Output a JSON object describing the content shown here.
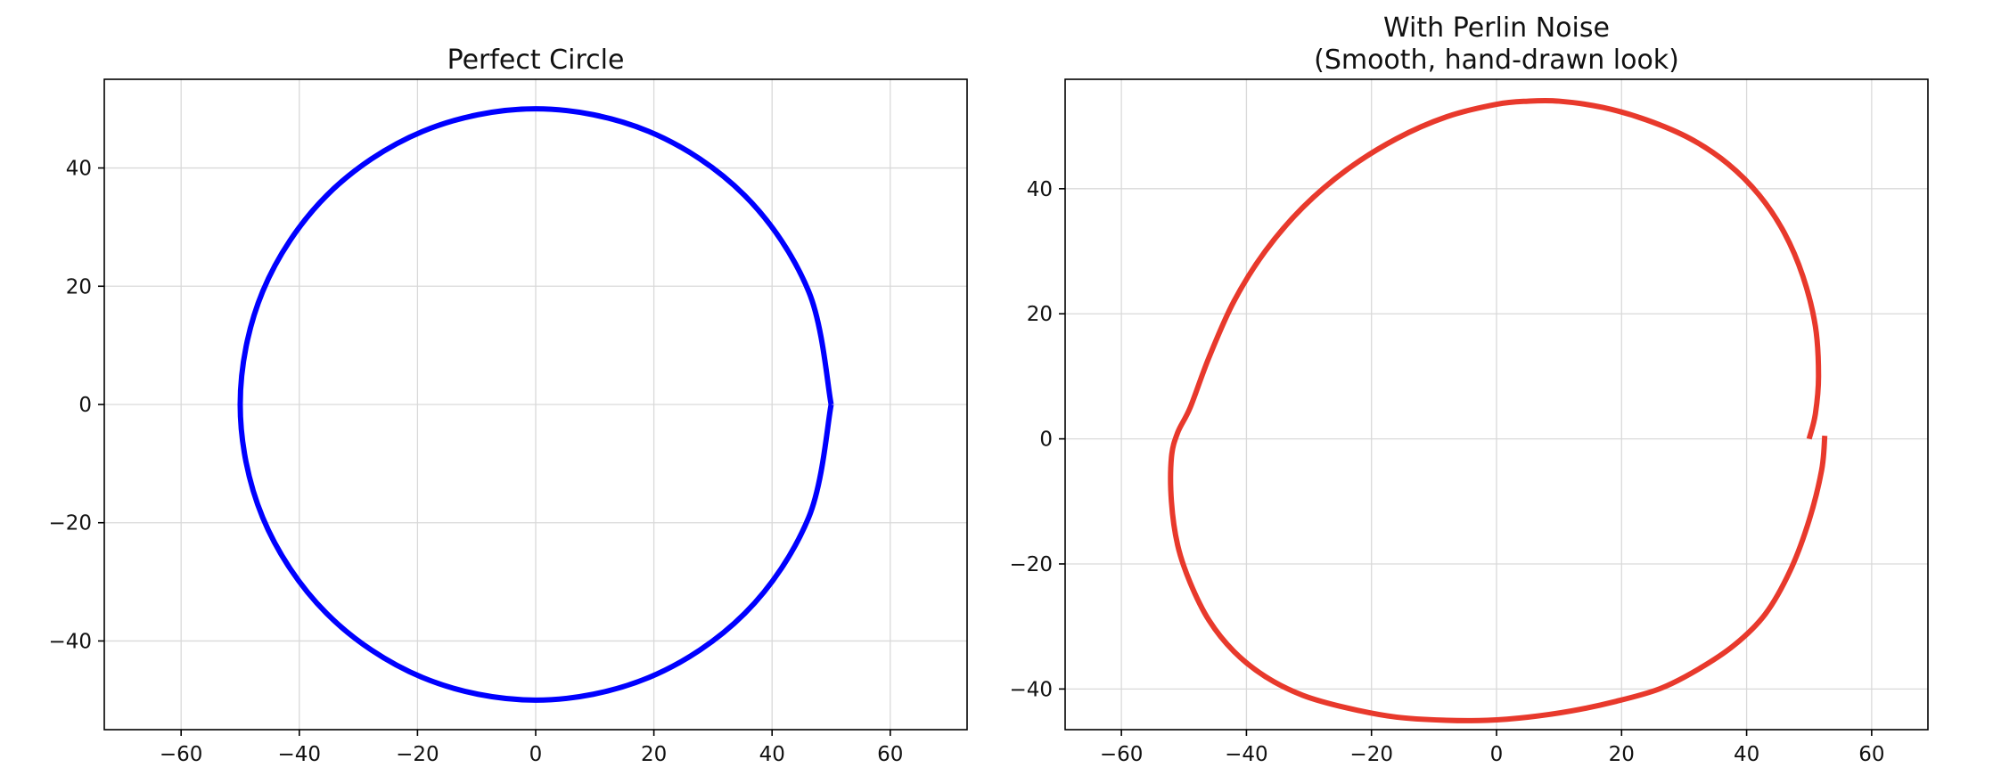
{
  "chart_data": [
    {
      "type": "line",
      "title": "Perfect Circle",
      "xlabel": "",
      "ylabel": "",
      "xlim": [
        -73,
        73
      ],
      "ylim": [
        -55,
        55
      ],
      "x_ticks": [
        -60,
        -40,
        -20,
        0,
        20,
        40,
        60
      ],
      "y_ticks": [
        -40,
        -20,
        0,
        20,
        40
      ],
      "x_tick_labels": [
        "−60",
        "−40",
        "−20",
        "0",
        "20",
        "40",
        "60"
      ],
      "y_tick_labels": [
        "−40",
        "−20",
        "0",
        "20",
        "40"
      ],
      "grid": true,
      "color": "#0000ff",
      "series": [
        {
          "x": [
            50,
            46.19,
            35.36,
            19.13,
            0,
            -19.13,
            -35.36,
            -46.19,
            -50,
            -46.19,
            -35.36,
            -19.13,
            0,
            19.13,
            35.36,
            46.19,
            50
          ],
          "y": [
            0,
            19.13,
            35.36,
            46.19,
            50,
            46.19,
            35.36,
            19.13,
            0,
            -19.13,
            -35.36,
            -46.19,
            -50,
            -46.19,
            -35.36,
            -19.13,
            0
          ]
        }
      ]
    },
    {
      "type": "line",
      "title": "With Perlin Noise\n(Smooth, hand-drawn look)",
      "xlabel": "",
      "ylabel": "",
      "xlim": [
        -69,
        69
      ],
      "ylim": [
        -46.5,
        57.5
      ],
      "x_ticks": [
        -60,
        -40,
        -20,
        0,
        20,
        40,
        60
      ],
      "y_ticks": [
        -40,
        -20,
        0,
        20,
        40
      ],
      "x_tick_labels": [
        "−60",
        "−40",
        "−20",
        "0",
        "20",
        "40",
        "60"
      ],
      "y_tick_labels": [
        "−40",
        "−20",
        "0",
        "20",
        "40"
      ],
      "grid": true,
      "color": "#e8392c",
      "series": [
        {
          "x": [
            50.0,
            51.0,
            51.5,
            51.0,
            49.0,
            46.0,
            42.0,
            37.0,
            31.0,
            24.0,
            17.0,
            10.0,
            5.0,
            0.0,
            -8.0,
            -16.0,
            -24.0,
            -31.0,
            -37.0,
            -42.0,
            -46.0,
            -49.0,
            -51.0,
            -52.0,
            -52.0,
            -51.0,
            -49.0,
            -46.0,
            -42.0,
            -37.0,
            -31.0,
            -24.0,
            -16.0,
            -8.0,
            -1.5,
            5.0,
            12.0,
            19.0,
            26.0,
            32.0,
            38.0,
            43.0,
            47.0,
            50.0,
            52.0,
            52.5
          ],
          "y": [
            0.0,
            4.0,
            10.0,
            18.0,
            26.0,
            33.0,
            39.0,
            44.0,
            48.0,
            51.0,
            53.0,
            54.0,
            54.0,
            53.5,
            51.5,
            48.0,
            43.0,
            37.0,
            30.0,
            22.0,
            13.0,
            5.0,
            1.0,
            -3.0,
            -10.0,
            -17.0,
            -23.0,
            -29.0,
            -34.0,
            -38.0,
            -41.0,
            -43.0,
            -44.5,
            -45.0,
            -45.0,
            -44.5,
            -43.5,
            -42.0,
            -40.0,
            -37.0,
            -33.0,
            -28.0,
            -21.0,
            -13.0,
            -5.0,
            0.5
          ]
        }
      ]
    }
  ]
}
